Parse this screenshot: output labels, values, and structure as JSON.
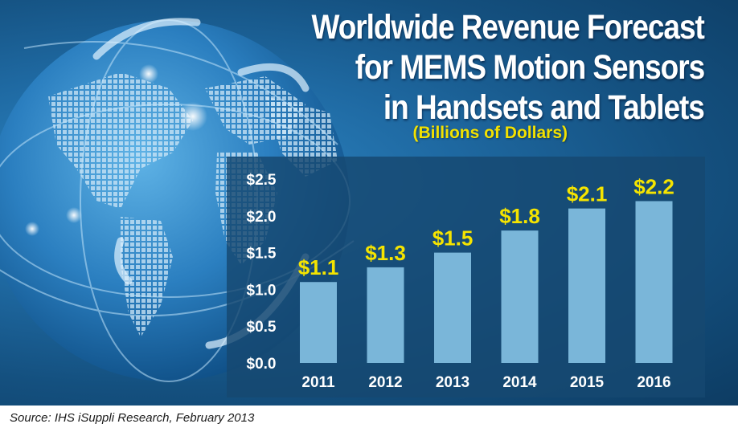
{
  "title_lines": [
    "Worldwide Revenue Forecast",
    "for MEMS Motion Sensors",
    "in Handsets and Tablets"
  ],
  "subtitle": "(Billions of Dollars)",
  "source": "Source: IHS iSuppli Research, February 2013",
  "chart_data": {
    "type": "bar",
    "title": "Worldwide Revenue Forecast for MEMS Motion Sensors in Handsets and Tablets",
    "subtitle": "(Billions of Dollars)",
    "categories": [
      "2011",
      "2012",
      "2013",
      "2014",
      "2015",
      "2016"
    ],
    "values": [
      1.1,
      1.3,
      1.5,
      1.8,
      2.1,
      2.2
    ],
    "data_labels": [
      "$1.1",
      "$1.3",
      "$1.5",
      "$1.8",
      "$2.1",
      "$2.2"
    ],
    "y_ticks": [
      "$0.0",
      "$0.5",
      "$1.0",
      "$1.5",
      "$2.0",
      "$2.5"
    ],
    "ylim": [
      0,
      2.5
    ],
    "grid": false,
    "colors": {
      "bar": "#7ab6d9",
      "label": "#f5e400",
      "text": "#ffffff"
    }
  }
}
